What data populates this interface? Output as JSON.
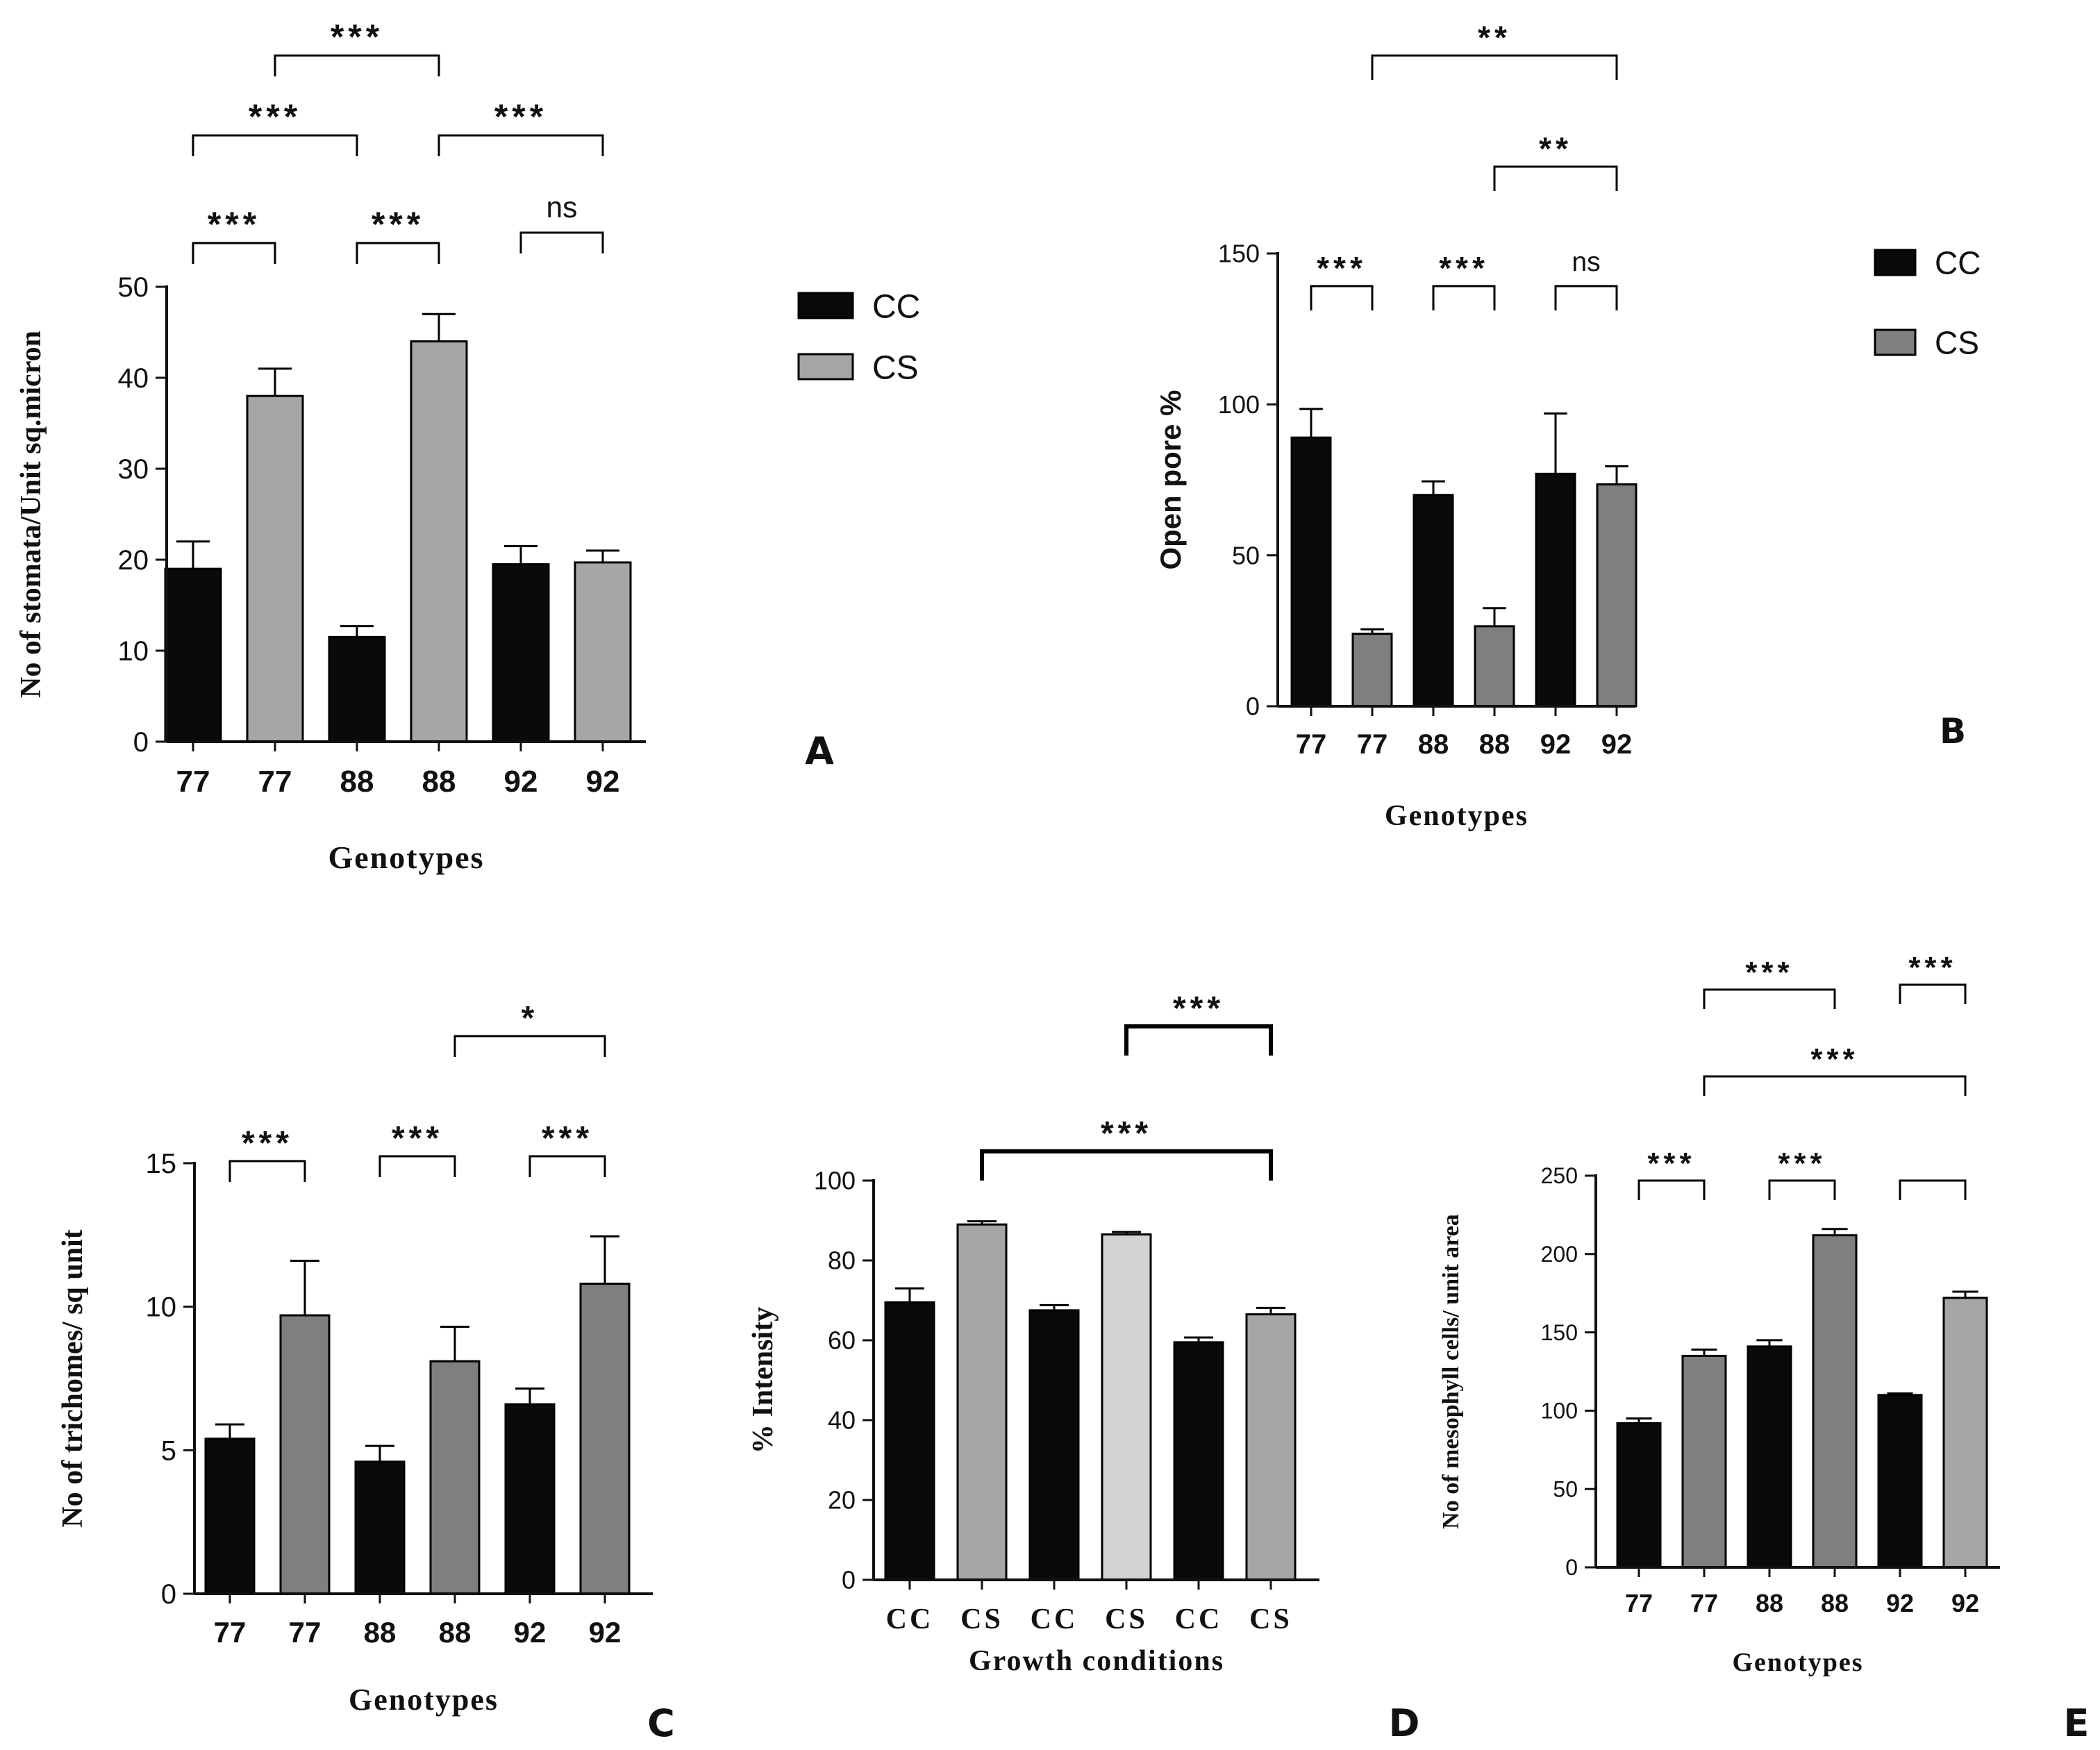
{
  "colors": {
    "cc": "#0a0a0a",
    "cs_light": "#a6a6a6",
    "cs_mid": "#7f7f7f",
    "cs_pale": "#d2d2d2",
    "axis": "#111111"
  },
  "chart_data": [
    {
      "panel": "A",
      "type": "bar",
      "categories": [
        "77",
        "77",
        "88",
        "88",
        "92",
        "92"
      ],
      "groups": [
        "CC",
        "CS",
        "CC",
        "CS",
        "CC",
        "CS"
      ],
      "values": [
        19,
        38,
        11.5,
        44,
        19.5,
        19.7
      ],
      "errors": [
        3,
        3,
        1.2,
        3,
        2,
        1.3
      ],
      "ylabel": "No of stomata/Unit sq.micron",
      "xlabel": "Genotypes",
      "ylim": [
        0,
        50
      ],
      "yticks": [
        "0",
        "10",
        "20",
        "30",
        "40",
        "50"
      ],
      "legend": [
        "CC",
        "CS"
      ],
      "significance": [
        {
          "from": 0,
          "to": 1,
          "label": "***"
        },
        {
          "from": 2,
          "to": 3,
          "label": "***"
        },
        {
          "from": 4,
          "to": 5,
          "label": "ns"
        },
        {
          "from": 0,
          "to": 2,
          "label": "***"
        },
        {
          "from": 3,
          "to": 5,
          "label": "***"
        },
        {
          "from": 1,
          "to": 3,
          "label": "***"
        }
      ]
    },
    {
      "panel": "B",
      "type": "bar",
      "categories": [
        "77",
        "77",
        "88",
        "88",
        "92",
        "92"
      ],
      "groups": [
        "CC",
        "CS",
        "CC",
        "CS",
        "CC",
        "CS"
      ],
      "values": [
        89,
        24,
        70,
        26.5,
        77,
        73.5
      ],
      "errors": [
        9.5,
        1.5,
        4.5,
        6,
        20,
        6
      ],
      "ylabel": "Open pore %",
      "xlabel": "Genotypes",
      "ylim": [
        0,
        150
      ],
      "yticks": [
        "0",
        "50",
        "100",
        "150"
      ],
      "legend": [
        "CC",
        "CS"
      ],
      "significance": [
        {
          "from": 0,
          "to": 1,
          "label": "***"
        },
        {
          "from": 2,
          "to": 3,
          "label": "***"
        },
        {
          "from": 4,
          "to": 5,
          "label": "ns"
        },
        {
          "from": 3,
          "to": 5,
          "label": "**"
        },
        {
          "from": 1,
          "to": 5,
          "label": "**"
        }
      ]
    },
    {
      "panel": "C",
      "type": "bar",
      "categories": [
        "77",
        "77",
        "88",
        "88",
        "92",
        "92"
      ],
      "groups": [
        "CC",
        "CS",
        "CC",
        "CS",
        "CC",
        "CS"
      ],
      "values": [
        5.4,
        9.7,
        4.6,
        8.1,
        6.6,
        10.8
      ],
      "errors": [
        0.5,
        1.9,
        0.55,
        1.2,
        0.55,
        1.65
      ],
      "ylabel": "No of trichomes/ sq unit",
      "xlabel": "Genotypes",
      "ylim": [
        0,
        15
      ],
      "yticks": [
        "0",
        "5",
        "10",
        "15"
      ],
      "significance": [
        {
          "from": 0,
          "to": 1,
          "label": "***"
        },
        {
          "from": 2,
          "to": 3,
          "label": "***"
        },
        {
          "from": 4,
          "to": 5,
          "label": "***"
        },
        {
          "from": 3,
          "to": 5,
          "label": "*"
        }
      ]
    },
    {
      "panel": "D",
      "type": "bar",
      "categories": [
        "CC",
        "CS",
        "CC",
        "CS",
        "CC",
        "CS"
      ],
      "values": [
        69.5,
        89,
        67.5,
        86.5,
        59.5,
        66.5
      ],
      "errors": [
        3.5,
        0.8,
        1.3,
        0.6,
        1.2,
        1.6
      ],
      "ylabel": "% Intensity",
      "xlabel": "Growth conditions",
      "ylim": [
        0,
        100
      ],
      "yticks": [
        "0",
        "20",
        "40",
        "60",
        "80",
        "100"
      ],
      "significance": [
        {
          "from": 1,
          "to": 5,
          "label": "***"
        },
        {
          "from": 3,
          "to": 5,
          "label": "***"
        }
      ]
    },
    {
      "panel": "E",
      "type": "bar",
      "categories": [
        "77",
        "77",
        "88",
        "88",
        "92",
        "92"
      ],
      "groups": [
        "CC",
        "CS",
        "CC",
        "CS",
        "CC",
        "CS"
      ],
      "values": [
        92,
        135,
        141,
        212,
        110,
        172
      ],
      "errors": [
        3,
        4,
        4,
        4,
        1,
        4
      ],
      "ylabel": "No of mesophyll cells/ unit area",
      "xlabel": "Genotypes",
      "ylim": [
        0,
        250
      ],
      "yticks": [
        "0",
        "50",
        "100",
        "150",
        "200",
        "250"
      ],
      "significance": [
        {
          "from": 0,
          "to": 1,
          "label": "***"
        },
        {
          "from": 2,
          "to": 3,
          "label": "***"
        },
        {
          "from": 4,
          "to": 5,
          "label": ""
        },
        {
          "from": 1,
          "to": 5,
          "label": "***"
        },
        {
          "from": 1,
          "to": 3,
          "label": "***"
        },
        {
          "from": 4,
          "to": 5,
          "label": "***"
        }
      ]
    }
  ]
}
